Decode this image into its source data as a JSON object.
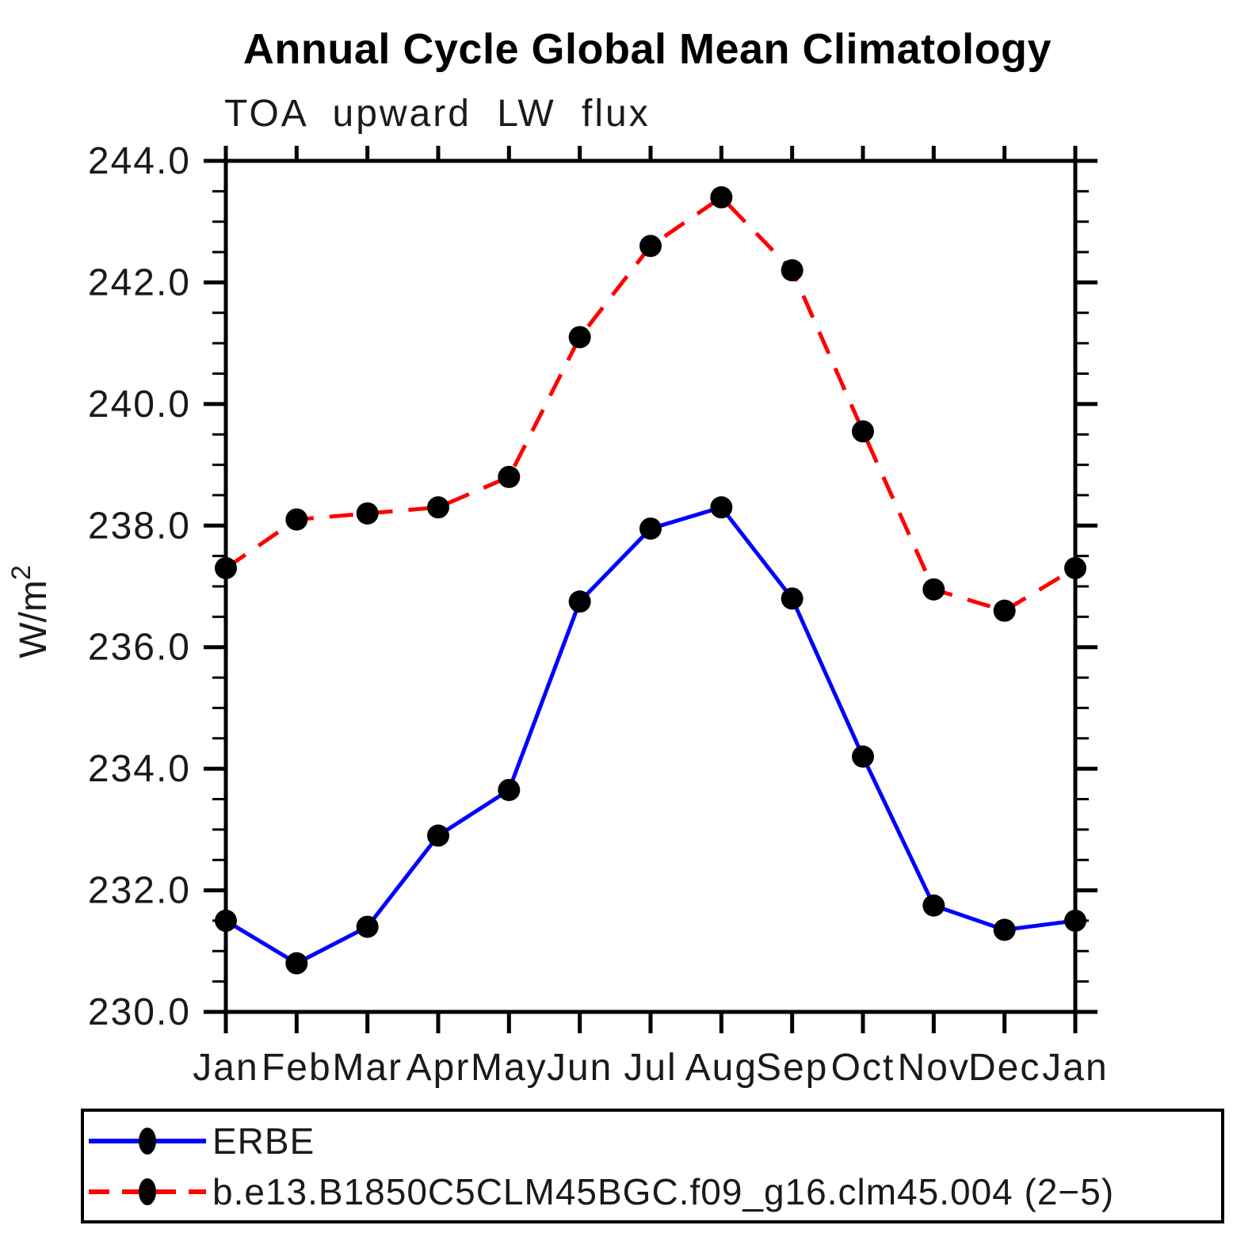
{
  "title": "Annual Cycle Global Mean Climatology",
  "subtitle": "TOA upward LW flux",
  "chart_data": {
    "type": "line",
    "title": "Annual Cycle Global Mean Climatology",
    "subtitle": "TOA upward LW flux",
    "xlabel": "",
    "ylabel": "W/m²",
    "ylabel_base": "W/m",
    "ylabel_exponent": "2",
    "categories": [
      "Jan",
      "Feb",
      "Mar",
      "Apr",
      "May",
      "Jun",
      "Jul",
      "Aug",
      "Sep",
      "Oct",
      "Nov",
      "Dec",
      "Jan"
    ],
    "ylim": [
      230.0,
      244.0
    ],
    "y_major_tick_step": 2.0,
    "y_minor_tick_step": 0.5,
    "y_tick_labels": [
      "244.0",
      "242.0",
      "240.0",
      "238.0",
      "236.0",
      "234.0",
      "232.0",
      "230.0"
    ],
    "grid": false,
    "legend_position": "bottom-left-box",
    "axis_color": "#000000",
    "marker_color": "#000000",
    "series": [
      {
        "name": "ERBE",
        "color": "#0000ff",
        "line_style": "solid",
        "marker": "filled-circle",
        "values": [
          231.5,
          230.8,
          231.4,
          232.9,
          233.65,
          236.75,
          237.95,
          238.3,
          236.8,
          234.2,
          231.75,
          231.35,
          231.5
        ]
      },
      {
        "name": "b.e13.B1850C5CLM45BGC.f09_g16.clm45.004 (2−5)",
        "color": "#ff0000",
        "line_style": "dashed",
        "marker": "filled-circle",
        "values": [
          237.3,
          238.1,
          238.2,
          238.3,
          238.8,
          241.1,
          242.6,
          243.4,
          242.2,
          239.55,
          236.95,
          236.6,
          237.3
        ]
      }
    ]
  }
}
